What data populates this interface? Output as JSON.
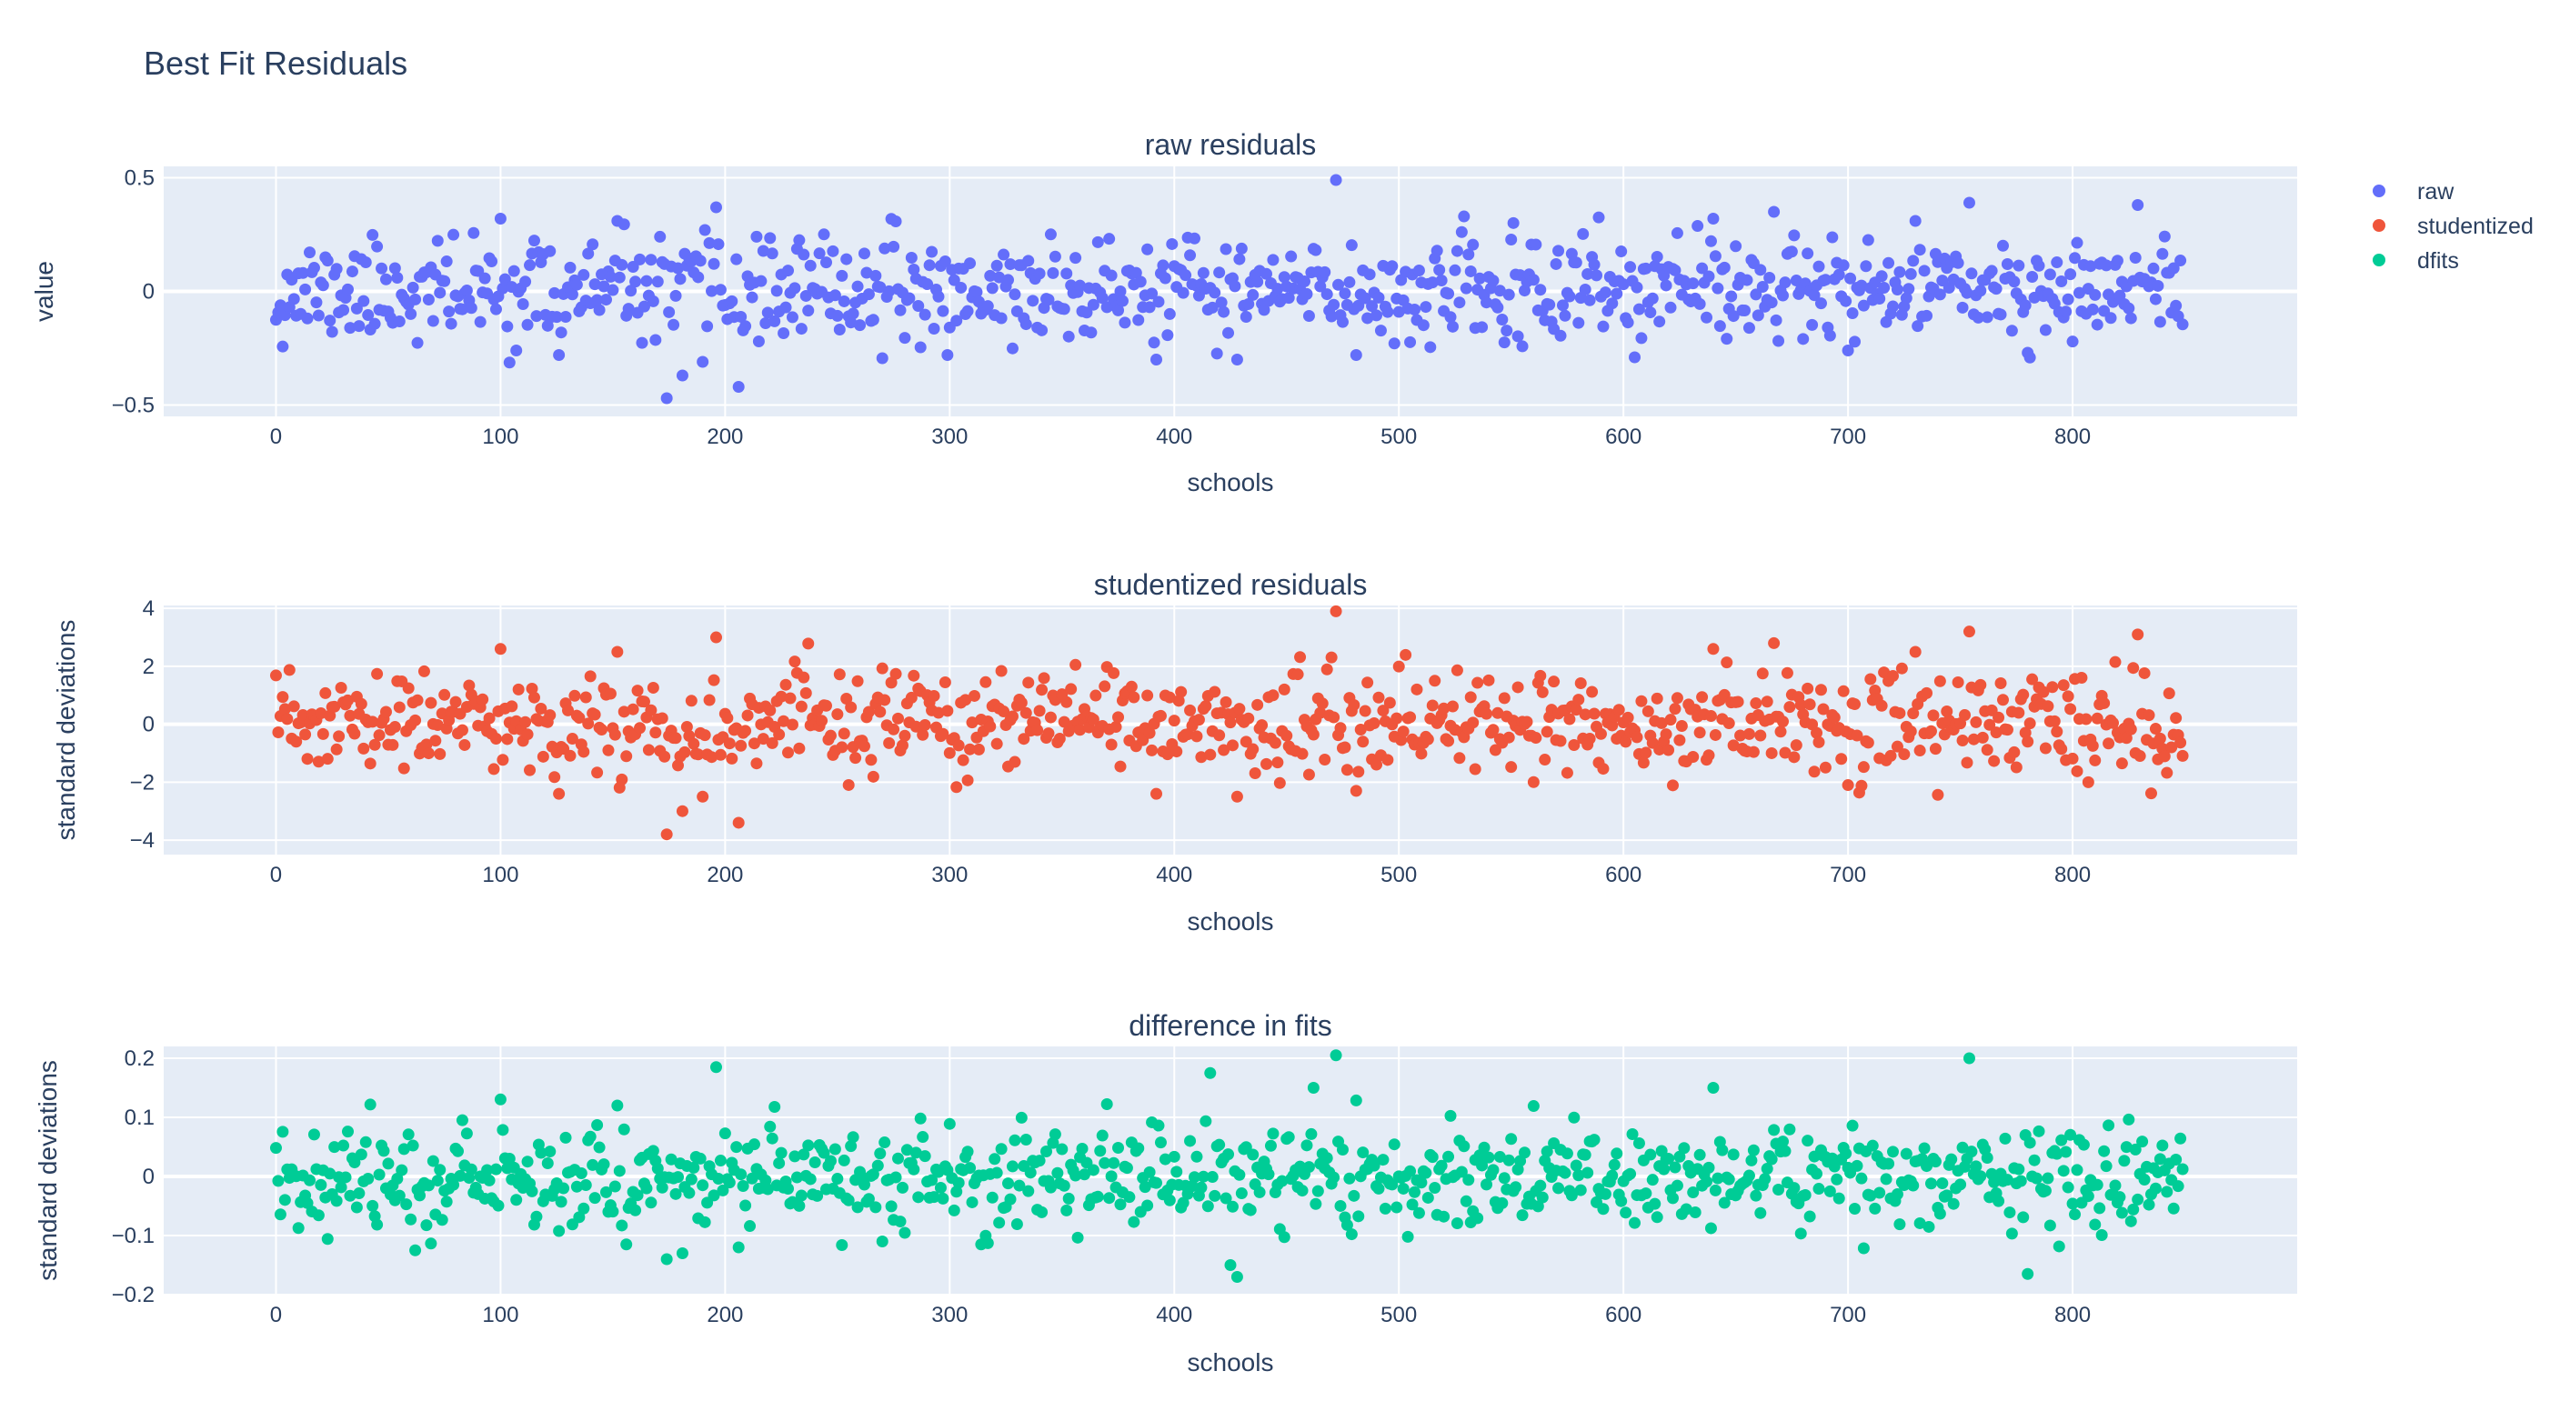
{
  "figure": {
    "title": "Best Fit Residuals"
  },
  "colors": {
    "raw": "#636efa",
    "studentized": "#EF553B",
    "dfits": "#00cc96",
    "plot_bg": "#E5ECF6",
    "grid": "#ffffff",
    "text": "#2a3f5f"
  },
  "legend": {
    "placement": "top-right",
    "items": [
      {
        "label": "raw",
        "color": "#636efa"
      },
      {
        "label": "studentized",
        "color": "#EF553B"
      },
      {
        "label": "dfits",
        "color": "#00cc96"
      }
    ]
  },
  "chart_data": [
    {
      "type": "scatter",
      "title": "raw residuals",
      "xlabel": "schools",
      "ylabel": "value",
      "xlim": [
        -50,
        900
      ],
      "ylim": [
        -0.55,
        0.55
      ],
      "x_ticks": [
        0,
        100,
        200,
        300,
        400,
        500,
        600,
        700,
        800
      ],
      "y_ticks": [
        -0.5,
        0,
        0.5
      ],
      "y_tick_labels": [
        "−0.5",
        "0",
        "0.5"
      ],
      "grid": true,
      "series": [
        {
          "name": "raw",
          "n_points": 850,
          "sd": 0.11,
          "seed": 11,
          "outliers": [
            [
              174,
              -0.47
            ],
            [
              206,
              -0.42
            ],
            [
              472,
              0.49
            ],
            [
              196,
              0.37
            ],
            [
              754,
              0.39
            ],
            [
              829,
              0.38
            ],
            [
              100,
              0.32
            ],
            [
              152,
              0.31
            ],
            [
              640,
              0.32
            ],
            [
              667,
              0.35
            ],
            [
              730,
              0.31
            ],
            [
              181,
              -0.37
            ],
            [
              190,
              -0.31
            ],
            [
              392,
              -0.3
            ],
            [
              428,
              -0.3
            ],
            [
              481,
              -0.28
            ],
            [
              780,
              -0.27
            ],
            [
              126,
              -0.28
            ],
            [
              700,
              -0.26
            ]
          ]
        }
      ]
    },
    {
      "type": "scatter",
      "title": "studentized residuals",
      "xlabel": "schools",
      "ylabel": "standard deviations",
      "xlim": [
        -50,
        900
      ],
      "ylim": [
        -4.5,
        4.1
      ],
      "x_ticks": [
        0,
        100,
        200,
        300,
        400,
        500,
        600,
        700,
        800
      ],
      "y_ticks": [
        -4,
        -2,
        0,
        2,
        4
      ],
      "y_tick_labels": [
        "−4",
        "−2",
        "0",
        "2",
        "4"
      ],
      "grid": true,
      "series": [
        {
          "name": "studentized",
          "n_points": 850,
          "sd": 0.85,
          "seed": 23,
          "outliers": [
            [
              174,
              -3.8
            ],
            [
              206,
              -3.4
            ],
            [
              472,
              3.9
            ],
            [
              196,
              3.0
            ],
            [
              754,
              3.2
            ],
            [
              829,
              3.1
            ],
            [
              100,
              2.6
            ],
            [
              152,
              2.5
            ],
            [
              640,
              2.6
            ],
            [
              667,
              2.8
            ],
            [
              730,
              2.5
            ],
            [
              181,
              -3.0
            ],
            [
              190,
              -2.5
            ],
            [
              392,
              -2.4
            ],
            [
              428,
              -2.5
            ],
            [
              481,
              -2.3
            ],
            [
              126,
              -2.4
            ],
            [
              700,
              -2.1
            ]
          ]
        }
      ]
    },
    {
      "type": "scatter",
      "title": "difference in fits",
      "xlabel": "schools",
      "ylabel": "standard deviations",
      "xlim": [
        -50,
        900
      ],
      "ylim": [
        -0.2,
        0.22
      ],
      "x_ticks": [
        0,
        100,
        200,
        300,
        400,
        500,
        600,
        700,
        800
      ],
      "y_ticks": [
        -0.2,
        -0.1,
        0,
        0.1,
        0.2
      ],
      "y_tick_labels": [
        "−0.2",
        "−0.1",
        "0",
        "0.1",
        "0.2"
      ],
      "grid": true,
      "series": [
        {
          "name": "dfits",
          "n_points": 850,
          "sd": 0.042,
          "seed": 37,
          "outliers": [
            [
              472,
              0.205
            ],
            [
              754,
              0.2
            ],
            [
              196,
              0.185
            ],
            [
              416,
              0.175
            ],
            [
              462,
              0.15
            ],
            [
              640,
              0.15
            ],
            [
              152,
              0.12
            ],
            [
              428,
              -0.17
            ],
            [
              780,
              -0.165
            ],
            [
              425,
              -0.15
            ],
            [
              174,
              -0.14
            ],
            [
              181,
              -0.13
            ],
            [
              62,
              -0.125
            ],
            [
              206,
              -0.12
            ],
            [
              156,
              -0.115
            ],
            [
              314,
              -0.115
            ],
            [
              270,
              -0.11
            ]
          ]
        }
      ]
    }
  ]
}
